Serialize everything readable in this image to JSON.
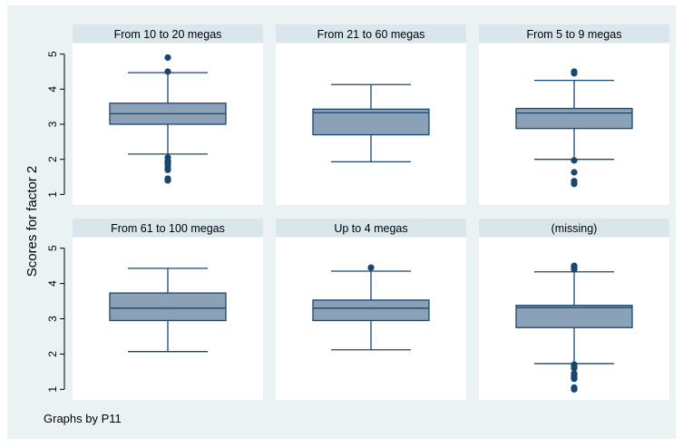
{
  "chart_data": {
    "type": "box",
    "ylabel": "Scores for factor 2",
    "footer_note": "Graphs by P11",
    "yticks": [
      1,
      2,
      3,
      4,
      5
    ],
    "ylim": [
      0.7,
      5.3
    ],
    "colors": {
      "background": "#eaf2f3",
      "panel": "#ffffff",
      "panel_header": "#d9e6ec",
      "box_fill": "#8aa1b8",
      "line": "#1a476f",
      "outlier": "#1a476f"
    },
    "panels": [
      {
        "title": "From 10 to 20 megas",
        "whisker_low": 2.15,
        "q1": 3.0,
        "median": 3.3,
        "q3": 3.6,
        "whisker_high": 4.47,
        "outliers": [
          4.9,
          4.5,
          2.05,
          1.95,
          1.9,
          1.85,
          1.75,
          1.7,
          1.45,
          1.4
        ]
      },
      {
        "title": "From 21 to 60 megas",
        "whisker_low": 1.93,
        "q1": 2.7,
        "median": 3.33,
        "q3": 3.43,
        "whisker_high": 4.13,
        "outliers": []
      },
      {
        "title": "From 5 to 9 megas",
        "whisker_low": 2.0,
        "q1": 2.88,
        "median": 3.32,
        "q3": 3.45,
        "whisker_high": 4.25,
        "outliers": [
          4.5,
          4.45,
          1.97,
          1.63,
          1.38,
          1.3
        ]
      },
      {
        "title": "From 61 to 100 megas",
        "whisker_low": 2.07,
        "q1": 2.95,
        "median": 3.3,
        "q3": 3.73,
        "whisker_high": 4.43,
        "outliers": []
      },
      {
        "title": "Up to 4 megas",
        "whisker_low": 2.12,
        "q1": 2.95,
        "median": 3.3,
        "q3": 3.53,
        "whisker_high": 4.35,
        "outliers": [
          4.45
        ]
      },
      {
        "title": "(missing)",
        "whisker_low": 1.73,
        "q1": 2.75,
        "median": 3.32,
        "q3": 3.38,
        "whisker_high": 4.33,
        "outliers": [
          4.5,
          4.45,
          4.4,
          1.7,
          1.65,
          1.6,
          1.45,
          1.4,
          1.35,
          1.3,
          1.05,
          1.0
        ]
      }
    ]
  }
}
